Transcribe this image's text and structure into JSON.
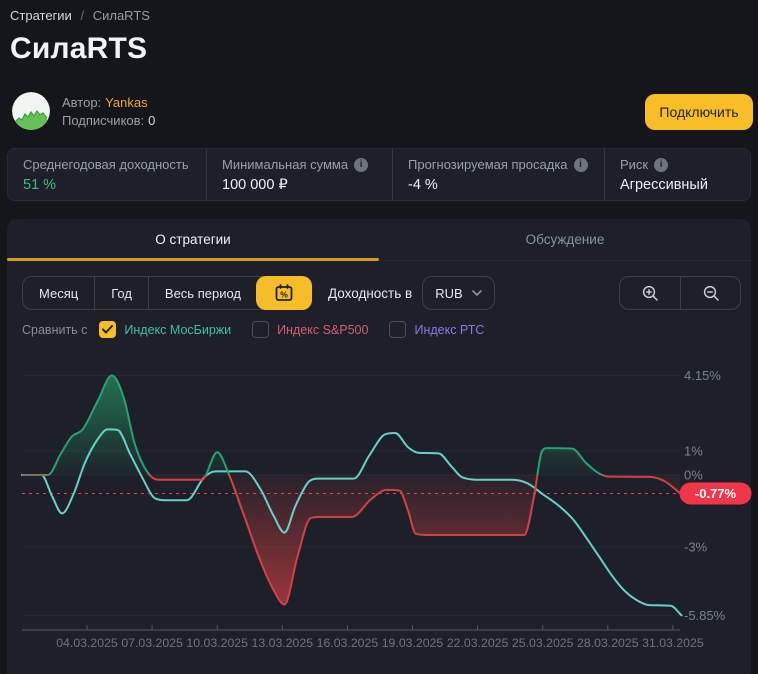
{
  "breadcrumb": {
    "root": "Стратегии",
    "separator": "/",
    "current": "СилаRTS"
  },
  "title": "СилаRTS",
  "author": {
    "label": "Автор:",
    "name": "Yankas",
    "subscribers_label": "Подписчиков:",
    "subscribers_value": "0"
  },
  "connect_button": "Подключить",
  "stats": [
    {
      "label": "Среднегодовая доходность",
      "value": "51 %",
      "positive": true,
      "info": false
    },
    {
      "label": "Минимальная сумма",
      "value": "100 000 ₽",
      "positive": false,
      "info": true
    },
    {
      "label": "Прогнозируемая просадка",
      "value": "-4 %",
      "positive": false,
      "info": true
    },
    {
      "label": "Риск",
      "value": "Агрессивный",
      "positive": false,
      "info": true
    }
  ],
  "info_icon_glyph": "i",
  "tabs": [
    {
      "label": "О стратегии",
      "active": true
    },
    {
      "label": "Обсуждение",
      "active": false
    }
  ],
  "toolbar": {
    "periods": [
      "Месяц",
      "Год",
      "Весь период"
    ],
    "calendar_button_active": true,
    "currency_label": "Доходность в",
    "currency_value": "RUB"
  },
  "compare": {
    "label": "Сравнить с",
    "options": [
      {
        "label": "Индекс МосБиржи",
        "color": "#41bfa7",
        "checked": true
      },
      {
        "label": "Индекс S&P500",
        "color": "#d45e74",
        "checked": false
      },
      {
        "label": "Индекс РТС",
        "color": "#8a79e8",
        "checked": false
      }
    ]
  },
  "chart_data": {
    "type": "line",
    "x_unit": "date (March 2025, day number)",
    "y_unit": "percent return",
    "ylim": [
      -6.3,
      4.6
    ],
    "grid": true,
    "baseline": 0,
    "current_value": {
      "value": -0.77,
      "label": "-0.77%",
      "color": "#f23649"
    },
    "y_ticks": [
      {
        "v": 4.15,
        "label": "4.15%"
      },
      {
        "v": 1,
        "label": "1%"
      },
      {
        "v": 0,
        "label": "0%"
      },
      {
        "v": -3,
        "label": "-3%"
      },
      {
        "v": -5.85,
        "label": "-5.85%"
      }
    ],
    "x_ticks": [
      {
        "day": 4,
        "label": "04.03.2025"
      },
      {
        "day": 7,
        "label": "07.03.2025"
      },
      {
        "day": 10,
        "label": "10.03.2025"
      },
      {
        "day": 13,
        "label": "13.03.2025"
      },
      {
        "day": 16,
        "label": "16.03.2025"
      },
      {
        "day": 19,
        "label": "19.03.2025"
      },
      {
        "day": 22,
        "label": "22.03.2025"
      },
      {
        "day": 25,
        "label": "25.03.2025"
      },
      {
        "day": 28,
        "label": "28.03.2025"
      },
      {
        "day": 31,
        "label": "31.03.2025"
      }
    ],
    "series": [
      {
        "name": "СилаRTS",
        "style": "area-vs-zero, green above 0, red below 0",
        "color_above": "#2aa172",
        "color_below": "#cf4347",
        "points": [
          [
            1,
            0
          ],
          [
            2.2,
            0
          ],
          [
            2.8,
            0.9
          ],
          [
            3.3,
            1.6
          ],
          [
            3.8,
            1.9
          ],
          [
            4.5,
            3.1
          ],
          [
            5.15,
            4.15
          ],
          [
            5.7,
            3.2
          ],
          [
            6.2,
            1.3
          ],
          [
            6.8,
            0.1
          ],
          [
            7.3,
            -0.2
          ],
          [
            9.3,
            -0.2
          ],
          [
            10.0,
            0.95
          ],
          [
            10.55,
            0
          ],
          [
            11.2,
            -1.6
          ],
          [
            12.0,
            -3.6
          ],
          [
            12.6,
            -4.8
          ],
          [
            13.1,
            -5.4
          ],
          [
            13.7,
            -3.4
          ],
          [
            14.3,
            -1.8
          ],
          [
            14.7,
            -1.75
          ],
          [
            16.2,
            -1.75
          ],
          [
            17.1,
            -1.0
          ],
          [
            17.8,
            -0.62
          ],
          [
            18.4,
            -0.65
          ],
          [
            18.8,
            -1.5
          ],
          [
            19.15,
            -2.45
          ],
          [
            19.7,
            -2.5
          ],
          [
            24.15,
            -2.5
          ],
          [
            24.6,
            -0.9
          ],
          [
            24.95,
            0.95
          ],
          [
            25.2,
            1.12
          ],
          [
            26.35,
            1.1
          ],
          [
            27.0,
            0.5
          ],
          [
            27.6,
            0.06
          ],
          [
            28.1,
            -0.07
          ],
          [
            29.9,
            -0.08
          ],
          [
            30.6,
            -0.25
          ],
          [
            31.35,
            -0.77
          ]
        ]
      },
      {
        "name": "Индекс МосБиржи",
        "style": "plain line",
        "color": "#67d1c8",
        "points": [
          [
            1,
            0
          ],
          [
            1.9,
            0
          ],
          [
            2.4,
            -0.9
          ],
          [
            2.85,
            -1.6
          ],
          [
            3.4,
            -0.75
          ],
          [
            3.9,
            0.5
          ],
          [
            4.5,
            1.5
          ],
          [
            4.95,
            1.9
          ],
          [
            5.4,
            1.88
          ],
          [
            6.0,
            0.85
          ],
          [
            6.6,
            -0.2
          ],
          [
            7.1,
            -0.95
          ],
          [
            7.6,
            -1.05
          ],
          [
            8.6,
            -1.05
          ],
          [
            9.4,
            -0.1
          ],
          [
            9.9,
            0.15
          ],
          [
            11.3,
            0.15
          ],
          [
            12.0,
            -0.6
          ],
          [
            12.6,
            -1.7
          ],
          [
            13.1,
            -2.4
          ],
          [
            13.6,
            -1.3
          ],
          [
            14.2,
            -0.3
          ],
          [
            14.6,
            -0.15
          ],
          [
            16.3,
            -0.15
          ],
          [
            17.0,
            0.8
          ],
          [
            17.75,
            1.7
          ],
          [
            18.2,
            1.75
          ],
          [
            18.8,
            1.15
          ],
          [
            19.3,
            0.92
          ],
          [
            20.2,
            0.9
          ],
          [
            20.8,
            0.35
          ],
          [
            21.3,
            -0.1
          ],
          [
            22.2,
            -0.2
          ],
          [
            23.6,
            -0.2
          ],
          [
            24.3,
            -0.35
          ],
          [
            25.0,
            -0.8
          ],
          [
            25.7,
            -1.25
          ],
          [
            26.4,
            -1.85
          ],
          [
            27.0,
            -2.6
          ],
          [
            27.6,
            -3.4
          ],
          [
            28.2,
            -4.2
          ],
          [
            28.8,
            -4.85
          ],
          [
            29.4,
            -5.25
          ],
          [
            29.9,
            -5.42
          ],
          [
            30.9,
            -5.45
          ],
          [
            31.4,
            -5.85
          ]
        ]
      }
    ]
  }
}
